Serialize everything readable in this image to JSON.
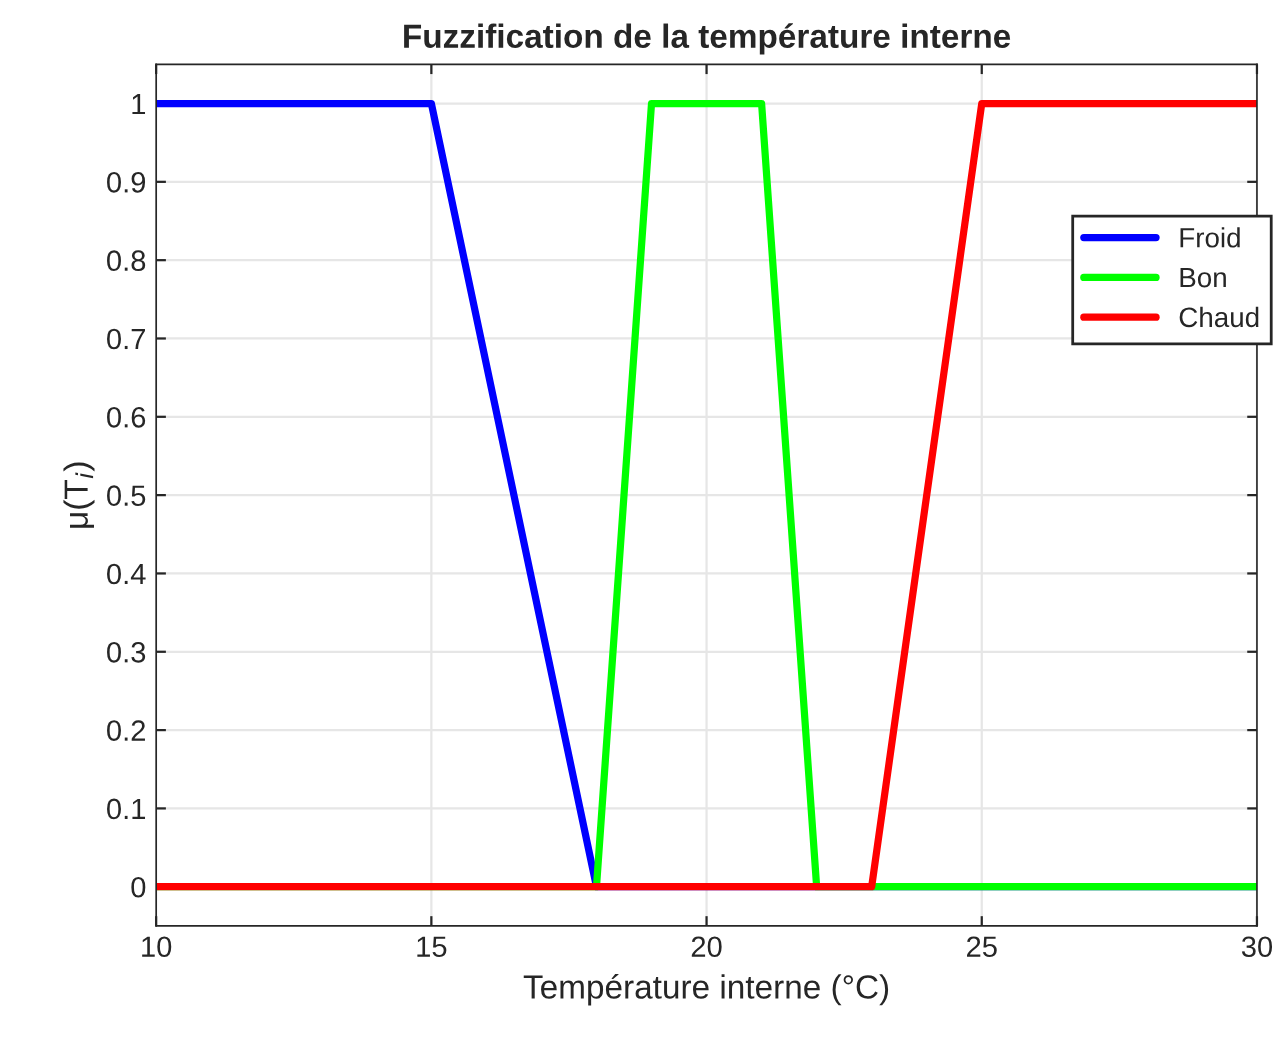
{
  "chart_data": {
    "type": "line",
    "title": "Fuzzification de la température interne",
    "xlabel": "Température interne (°C)",
    "ylabel": "μ(T$_{i}$)",
    "series": [
      {
        "name": "Froid",
        "color": "#0000ff",
        "x": [
          10,
          15,
          18,
          30
        ],
        "values": [
          1,
          1,
          0,
          0
        ]
      },
      {
        "name": "Bon",
        "color": "#00ff00",
        "x": [
          10,
          18,
          19,
          21,
          22,
          30
        ],
        "values": [
          0,
          0,
          1,
          1,
          0,
          0
        ]
      },
      {
        "name": "Chaud",
        "color": "#ff0000",
        "x": [
          10,
          23,
          25,
          30
        ],
        "values": [
          0,
          0,
          1,
          1
        ]
      }
    ],
    "xlim": [
      10,
      30
    ],
    "xticks": [
      10,
      15,
      20,
      25,
      30
    ],
    "ylim": [
      -0.05,
      1.05
    ],
    "yticks": [
      0,
      0.1,
      0.2,
      0.3,
      0.4,
      0.5,
      0.6,
      0.7,
      0.8,
      0.9,
      1
    ],
    "grid": true,
    "legend": "top right",
    "marker": "none",
    "line_style": "solid"
  }
}
